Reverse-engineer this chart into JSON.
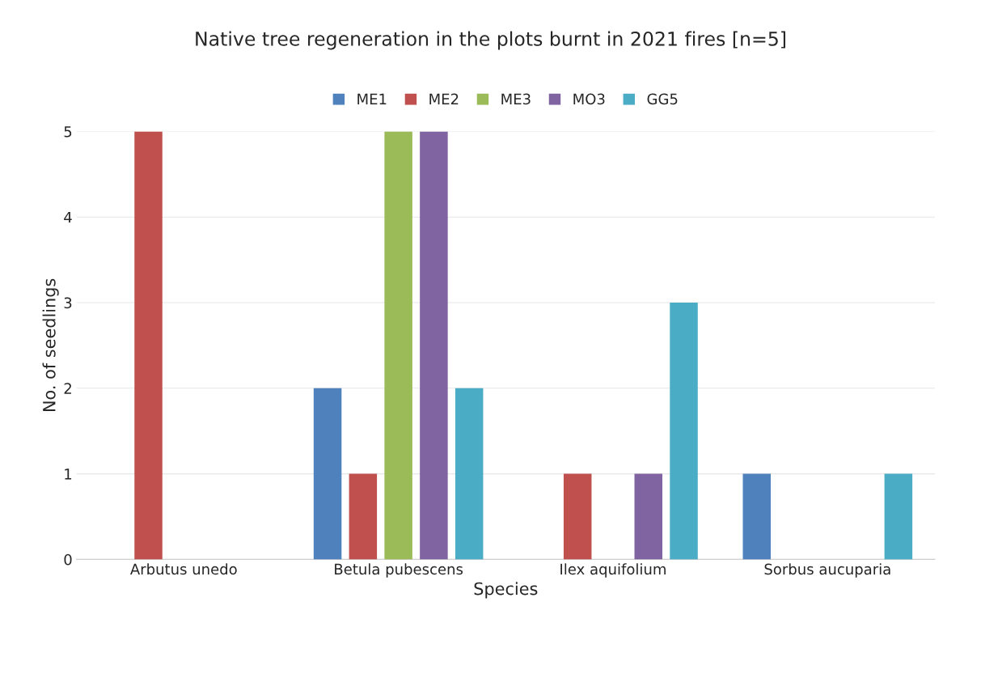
{
  "chart_data": {
    "type": "bar",
    "title": "Native tree regeneration in the plots burnt in 2021 fires [n=5]",
    "xlabel": "Species",
    "ylabel": "No. of seedlings",
    "categories": [
      "Arbutus unedo",
      "Betula pubescens",
      "Ilex aquifolium",
      "Sorbus aucuparia"
    ],
    "series": [
      {
        "name": "ME1",
        "color": "#4f81bd",
        "values": [
          0,
          2,
          0,
          1
        ]
      },
      {
        "name": "ME2",
        "color": "#c0504d",
        "values": [
          5,
          1,
          1,
          0
        ]
      },
      {
        "name": "ME3",
        "color": "#9bbb59",
        "values": [
          0,
          5,
          0,
          0
        ]
      },
      {
        "name": "MO3",
        "color": "#8064a2",
        "values": [
          0,
          5,
          1,
          0
        ]
      },
      {
        "name": "GG5",
        "color": "#4bacc6",
        "values": [
          0,
          2,
          3,
          1
        ]
      }
    ],
    "ylim": [
      0,
      5
    ],
    "yticks": [
      0,
      1,
      2,
      3,
      4,
      5
    ],
    "grid": "y",
    "legend": "top"
  }
}
